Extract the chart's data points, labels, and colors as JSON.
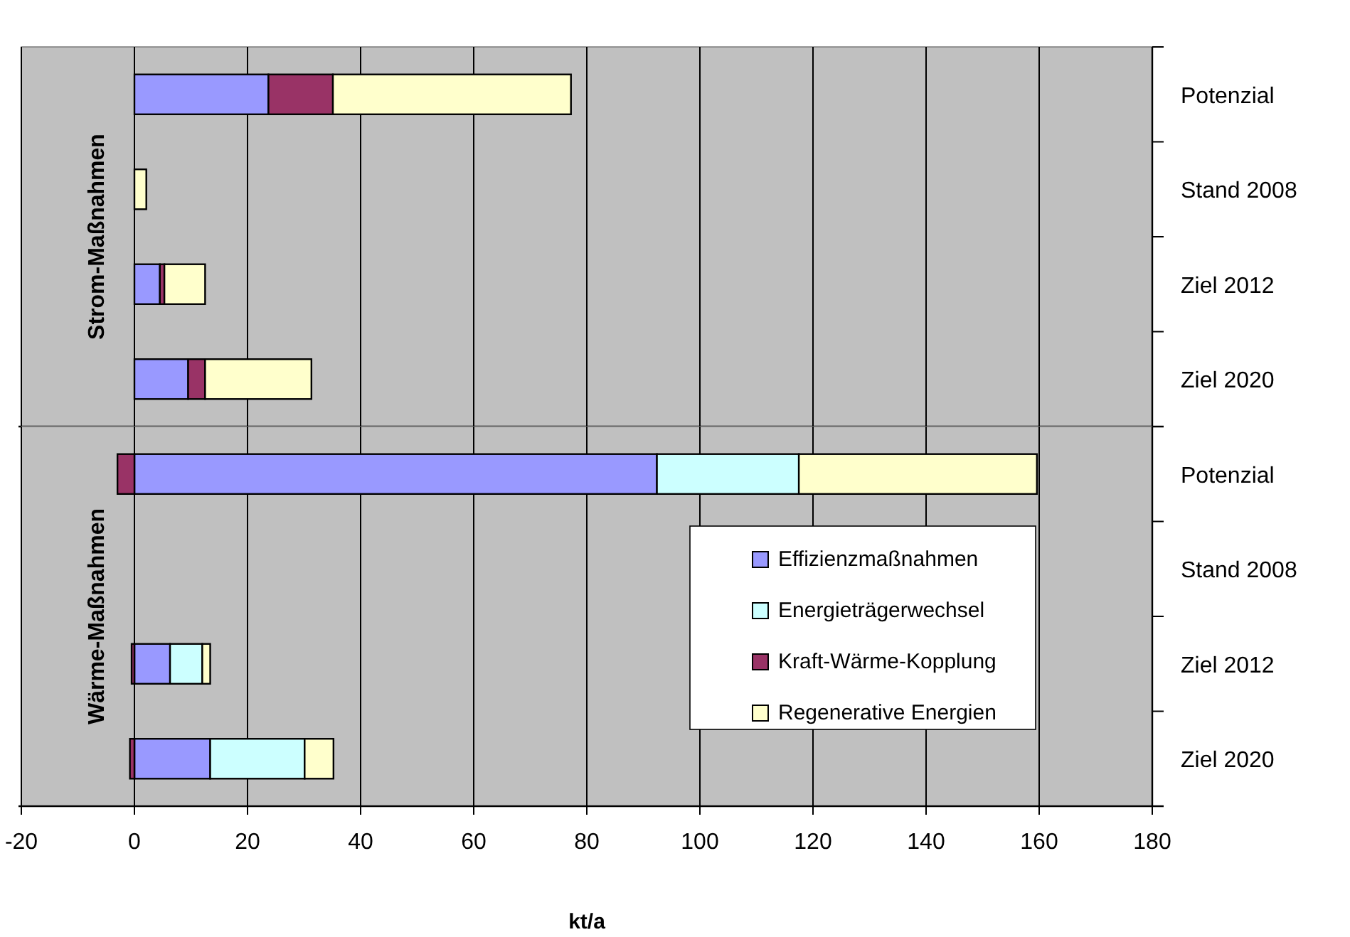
{
  "chart_data": [
    {
      "type": "bar",
      "orientation": "horizontal",
      "stacked": true,
      "ylabel": "Strom-Maßnahmen",
      "categories": [
        "Potenzial",
        "Stand 2008",
        "Ziel 2012",
        "Ziel 2020"
      ],
      "series": [
        {
          "color": "#9999ff",
          "values": [
            23.7,
            null,
            4.5,
            9.5
          ]
        },
        {
          "color": "#993366",
          "values": [
            11.4,
            null,
            0.8,
            3.0
          ]
        },
        {
          "color": "#ffffcc",
          "values": [
            42.1,
            2.1,
            7.2,
            18.8
          ]
        }
      ],
      "xlim": [
        -20,
        180
      ],
      "xticks": [
        -20,
        0,
        20,
        40,
        60,
        80,
        100,
        120,
        140,
        160,
        180
      ],
      "grid": "x",
      "tick_labels": "y",
      "legend": false
    },
    {
      "type": "bar",
      "orientation": "horizontal",
      "stacked": true,
      "ylabel": "Wärme-Maßnahmen",
      "xlabel": "kt/a",
      "categories": [
        "Potenzial",
        "Stand 2008",
        "Ziel 2012",
        "Ziel 2020"
      ],
      "series": [
        {
          "name": "Effizienzmaßnahmen",
          "color": "#9999ff",
          "values": [
            92.4,
            null,
            6.3,
            13.4
          ]
        },
        {
          "name": "Energieträgerwechsel",
          "color": "#ccffff",
          "values": [
            25.1,
            null,
            5.7,
            16.7
          ]
        },
        {
          "name": "Kraft-Wärme-Kopplung",
          "color": "#993366",
          "values": [
            -3.0,
            null,
            -0.5,
            -0.8
          ]
        },
        {
          "name": "Regenerative Energien",
          "color": "#ffffcc",
          "values": [
            42.1,
            null,
            1.4,
            5.1
          ]
        }
      ],
      "xlim": [
        -20,
        180
      ],
      "xticks": [
        -20,
        0,
        20,
        40,
        60,
        80,
        100,
        120,
        140,
        160,
        180
      ],
      "grid": "x",
      "legend": "bottom right"
    }
  ]
}
